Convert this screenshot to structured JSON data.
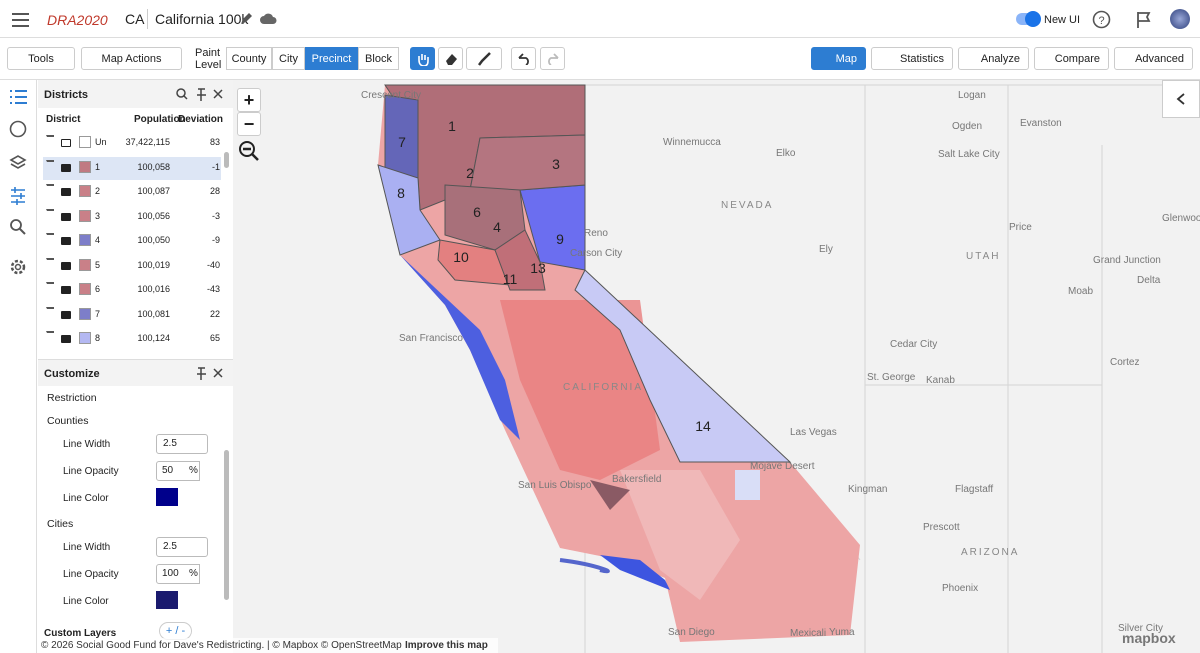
{
  "header": {
    "logo": "DRA2020",
    "state": "CA",
    "plan_name": "California 100k",
    "new_ui": "New UI"
  },
  "toolbar": {
    "tools": "Tools",
    "map_actions": "Map Actions",
    "paint_level": "Paint Level",
    "levels": [
      "County",
      "City",
      "Precinct",
      "Block"
    ],
    "active_level": 2,
    "views": [
      "Map",
      "Statistics",
      "Analyze",
      "Compare",
      "Advanced"
    ],
    "active_view": 0
  },
  "districts_panel": {
    "title": "Districts",
    "columns": [
      "District",
      "Population",
      "Deviation"
    ],
    "rows": [
      {
        "id": "Un",
        "population": "37,422,115",
        "deviation": "83",
        "color": "#ffffff"
      },
      {
        "id": "1",
        "population": "100,058",
        "deviation": "-1",
        "color": "#c07a82"
      },
      {
        "id": "2",
        "population": "100,087",
        "deviation": "28",
        "color": "#c98088"
      },
      {
        "id": "3",
        "population": "100,056",
        "deviation": "-3",
        "color": "#c98088"
      },
      {
        "id": "4",
        "population": "100,050",
        "deviation": "-9",
        "color": "#7d7ec9"
      },
      {
        "id": "5",
        "population": "100,019",
        "deviation": "-40",
        "color": "#c98088"
      },
      {
        "id": "6",
        "population": "100,016",
        "deviation": "-43",
        "color": "#c98088"
      },
      {
        "id": "7",
        "population": "100,081",
        "deviation": "22",
        "color": "#7d7ec9"
      },
      {
        "id": "8",
        "population": "100,124",
        "deviation": "65",
        "color": "#b4b8f2"
      }
    ]
  },
  "customize": {
    "title": "Customize",
    "restriction": "Restriction",
    "counties": {
      "label": "Counties",
      "line_width_label": "Line Width",
      "line_width": "2.5",
      "line_opacity_label": "Line Opacity",
      "line_opacity": "50",
      "unit": "%",
      "line_color_label": "Line Color",
      "line_color": "#00008b"
    },
    "cities": {
      "label": "Cities",
      "line_width_label": "Line Width",
      "line_width": "2.5",
      "line_opacity_label": "Line Opacity",
      "line_opacity": "100",
      "unit": "%",
      "line_color_label": "Line Color",
      "line_color": "#1a1a6e"
    },
    "custom_layers": "Custom Layers",
    "add_remove": "+ / -"
  },
  "map": {
    "district_labels": [
      "1",
      "2",
      "3",
      "4",
      "6",
      "7",
      "8",
      "9",
      "10",
      "11",
      "13",
      "14"
    ],
    "places": [
      "Crescent City",
      "Winnemucca",
      "Elko",
      "Logan",
      "Ogden",
      "Evanston",
      "Salt Lake City",
      "NEVADA",
      "Reno",
      "Carson City",
      "Price",
      "Ely",
      "UTAH",
      "Grand Junction",
      "Glenwood Spri",
      "Delta",
      "Moab",
      "San Francisco",
      "CALIFORNIA",
      "Cedar City",
      "St. George",
      "Kanab",
      "Cortez",
      "Las Vegas",
      "Mojave Desert",
      "Kingman",
      "Flagstaff",
      "San Luis Obispo",
      "Bakersfield",
      "Prescott",
      "ARIZONA",
      "Phoenix",
      "San Diego",
      "Mexicali",
      "Yuma",
      "Silver City"
    ],
    "attribution": "© 2026 Social Good Fund for Dave's Redistricting. | © Mapbox © OpenStreetMap",
    "improve": "Improve this map",
    "brand": "mapbox"
  }
}
